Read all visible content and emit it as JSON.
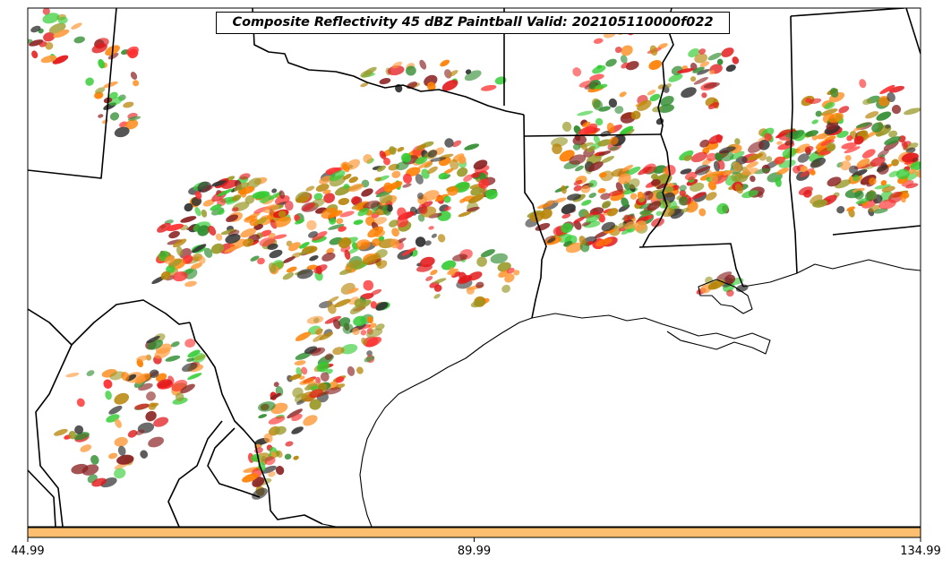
{
  "title": "Composite Reflectivity 45 dBZ Paintball Valid: 202105110000f022",
  "colorbar": {
    "color": "#fdbf6f",
    "ticks": [
      "44.99",
      "89.99",
      "134.99"
    ]
  },
  "member_colors": [
    "#e31a1c",
    "#ff7f00",
    "#33cc33",
    "#8b2323",
    "#9a9a2a",
    "#fd9a3a",
    "#2e8b2e",
    "#333333",
    "#ff3030",
    "#b8860b"
  ],
  "icons": {
    "map": "map-icon"
  }
}
